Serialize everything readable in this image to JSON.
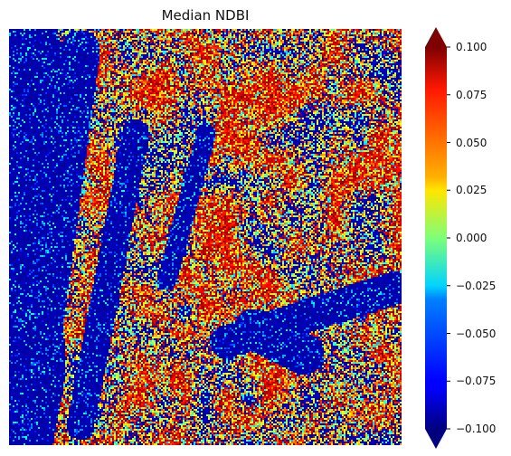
{
  "title": "Median NDBI",
  "colorbar": {
    "colormap": "jet",
    "range": [
      -0.1,
      0.1
    ],
    "extend": "both",
    "ticks": [
      "0.100",
      "0.075",
      "0.050",
      "0.025",
      "0.000",
      "−0.025",
      "−0.050",
      "−0.075",
      "−0.100"
    ]
  }
}
